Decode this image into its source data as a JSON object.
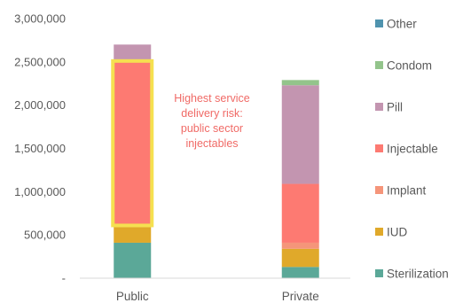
{
  "chart_data": {
    "type": "bar",
    "stacked": true,
    "categories": [
      "Public",
      "Private"
    ],
    "series": [
      {
        "name": "Sterilization",
        "values": [
          410000,
          130000
        ],
        "color": "#5ba898"
      },
      {
        "name": "IUD",
        "values": [
          180000,
          210000
        ],
        "color": "#e0a92a"
      },
      {
        "name": "Implant",
        "values": [
          30000,
          70000
        ],
        "color": "#f5957a"
      },
      {
        "name": "Injectable",
        "values": [
          1880000,
          680000
        ],
        "color": "#fd7a72"
      },
      {
        "name": "Pill",
        "values": [
          200000,
          1140000
        ],
        "color": "#c395b0"
      },
      {
        "name": "Condom",
        "values": [
          0,
          60000
        ],
        "color": "#93c48b"
      },
      {
        "name": "Other",
        "values": [
          0,
          0
        ],
        "color": "#4f93ae"
      }
    ],
    "ylim": [
      0,
      3000000
    ],
    "yticks": [
      {
        "value": 0,
        "label": "-"
      },
      {
        "value": 500000,
        "label": "500,000"
      },
      {
        "value": 1000000,
        "label": "1,000,000"
      },
      {
        "value": 1500000,
        "label": "1,500,000"
      },
      {
        "value": 2000000,
        "label": "2,000,000"
      },
      {
        "value": 2500000,
        "label": "2,500,000"
      },
      {
        "value": 3000000,
        "label": "3,000,000"
      }
    ],
    "grid": false,
    "legend_position": "right",
    "annotation": {
      "lines": [
        "Highest service",
        "delivery risk:",
        "public sector",
        "injectables"
      ],
      "color": "#f06a66"
    },
    "highlight": {
      "category": "Public",
      "series": "Injectable",
      "color": "#f5e050"
    }
  }
}
